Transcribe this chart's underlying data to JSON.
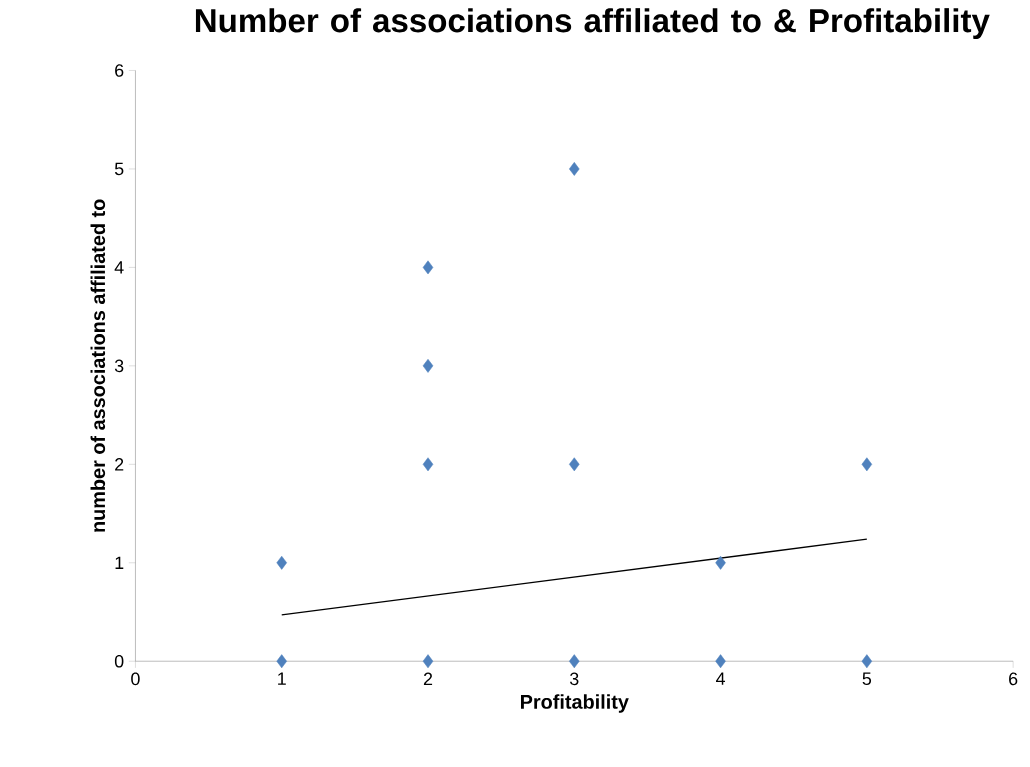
{
  "chart_data": {
    "type": "scatter",
    "title": "Number of associations  affiliated to & Profitability",
    "xlabel": "Profitability",
    "ylabel": "number of associations  affiliated to",
    "series": [
      {
        "color": "#4f81bd",
        "marker": "diamond",
        "x": [
          1,
          1,
          2,
          2,
          2,
          2,
          3,
          3,
          3,
          4,
          4,
          5,
          5
        ],
        "values": [
          0,
          1,
          0,
          2,
          3,
          4,
          0,
          2,
          5,
          0,
          1,
          0,
          2
        ]
      },
      {
        "type": "line",
        "color": "#000000",
        "marker": "none",
        "x": [
          1,
          5
        ],
        "values": [
          0.47,
          1.24
        ]
      }
    ],
    "xlim": [
      0,
      6
    ],
    "ylim": [
      0,
      6
    ],
    "xticks": [
      0,
      1,
      2,
      3,
      4,
      5,
      6
    ],
    "yticks": [
      0,
      1,
      2,
      3,
      4,
      5,
      6
    ],
    "grid": false
  }
}
